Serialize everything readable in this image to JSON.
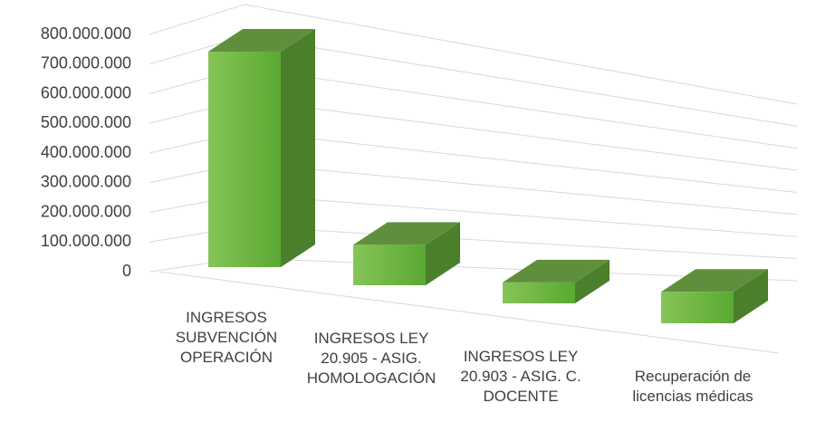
{
  "chart_data": {
    "type": "bar3d",
    "categories": [
      "INGRESOS SUBVENCIÓN OPERACIÓN",
      "INGRESOS LEY 20.905 - ASIG. HOMOLOGACIÓN",
      "INGRESOS LEY 20.903 - ASIG. C. DOCENTE",
      "Recuperación de licencias médicas"
    ],
    "values": [
      720000000,
      135000000,
      70000000,
      105000000
    ],
    "color": "#6fb23f",
    "ylim": [
      0,
      800000000
    ],
    "yticks": [
      0,
      {
        "value": 100000000,
        "label": "100.000.000"
      },
      {
        "value": 200000000,
        "label": "200.000.000"
      },
      {
        "value": 300000000,
        "label": "300.000.000"
      },
      {
        "value": 400000000,
        "label": "400.000.000"
      },
      {
        "value": 500000000,
        "label": "500.000.000"
      },
      {
        "value": 600000000,
        "label": "600.000.000"
      },
      {
        "value": 700000000,
        "label": "700.000.000"
      },
      {
        "value": 800000000,
        "label": "800.000.000"
      }
    ],
    "grid": true
  }
}
